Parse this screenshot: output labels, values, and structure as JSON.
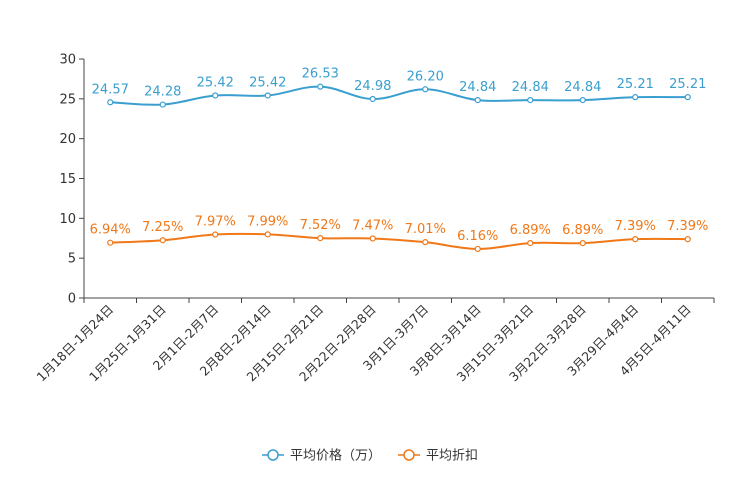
{
  "chart_data": {
    "type": "line",
    "title": "",
    "xlabel": "",
    "ylabel": "",
    "ylim": [
      0,
      30
    ],
    "yticks": [
      0,
      5,
      10,
      15,
      20,
      25,
      30
    ],
    "grid": false,
    "legend_position": "bottom-center",
    "categories": [
      "1月18日-1月24日",
      "1月25日-1月31日",
      "2月1日-2月7日",
      "2月8日-2月14日",
      "2月15日-2月21日",
      "2月22日-2月28日",
      "3月1日-3月7日",
      "3月8日-3月14日",
      "3月15日-3月21日",
      "3月22日-3月28日",
      "3月29日-4月4日",
      "4月5日-4月11日"
    ],
    "series": [
      {
        "name": "平均价格（万）",
        "color": "#3a9fd0",
        "values": [
          24.57,
          24.28,
          25.42,
          25.42,
          26.53,
          24.98,
          26.2,
          24.84,
          24.84,
          24.84,
          25.21,
          25.21
        ],
        "labels": [
          "24.57",
          "24.28",
          "25.42",
          "25.42",
          "26.53",
          "24.98",
          "26.20",
          "24.84",
          "24.84",
          "24.84",
          "25.21",
          "25.21"
        ]
      },
      {
        "name": "平均折扣",
        "color": "#f07818",
        "values": [
          6.94,
          7.25,
          7.97,
          7.99,
          7.52,
          7.47,
          7.01,
          6.16,
          6.89,
          6.89,
          7.39,
          7.39
        ],
        "labels": [
          "6.94%",
          "7.25%",
          "7.97%",
          "7.99%",
          "7.52%",
          "7.47%",
          "7.01%",
          "6.16%",
          "6.89%",
          "6.89%",
          "7.39%",
          "7.39%"
        ]
      }
    ]
  }
}
